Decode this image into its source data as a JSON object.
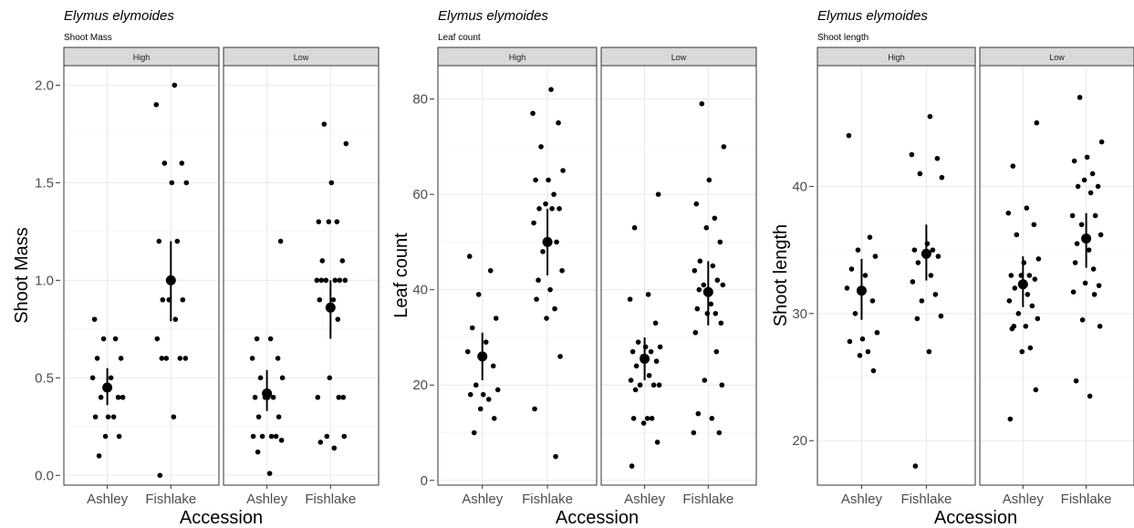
{
  "chart_data": [
    {
      "type": "scatter",
      "title": "Elymus elymoides",
      "subtitle": "Shoot Mass",
      "xlabel": "Accession",
      "ylabel": "Shoot Mass",
      "ylim": [
        -0.05,
        2.1
      ],
      "yticks": [
        0.0,
        0.5,
        1.0,
        1.5,
        2.0
      ],
      "ytick_labels": [
        "0.0",
        "0.5",
        "1.0",
        "1.5",
        "2.0"
      ],
      "categories": [
        "Ashley",
        "Fishlake"
      ],
      "grid": true,
      "facets": [
        {
          "label": "High",
          "groups": [
            {
              "x": "Ashley",
              "mean": 0.45,
              "ci": [
                0.36,
                0.55
              ],
              "points": [
                0.8,
                0.7,
                0.7,
                0.6,
                0.6,
                0.5,
                0.5,
                0.4,
                0.4,
                0.4,
                0.3,
                0.3,
                0.3,
                0.2,
                0.2,
                0.1
              ]
            },
            {
              "x": "Fishlake",
              "mean": 1.0,
              "ci": [
                0.79,
                1.2
              ],
              "points": [
                2.0,
                1.9,
                1.6,
                1.6,
                1.5,
                1.5,
                1.2,
                1.2,
                0.9,
                0.9,
                0.9,
                0.8,
                0.7,
                0.6,
                0.6,
                0.6,
                0.6,
                0.3,
                0.0
              ]
            }
          ]
        },
        {
          "label": "Low",
          "groups": [
            {
              "x": "Ashley",
              "mean": 0.42,
              "ci": [
                0.33,
                0.54
              ],
              "points": [
                1.2,
                0.7,
                0.7,
                0.6,
                0.6,
                0.5,
                0.5,
                0.4,
                0.4,
                0.4,
                0.4,
                0.3,
                0.3,
                0.2,
                0.2,
                0.2,
                0.2,
                0.18,
                0.12,
                0.01
              ]
            },
            {
              "x": "Fishlake",
              "mean": 0.86,
              "ci": [
                0.7,
                1.0
              ],
              "points": [
                1.8,
                1.7,
                1.5,
                1.3,
                1.3,
                1.3,
                1.1,
                1.1,
                1.0,
                1.0,
                1.0,
                1.0,
                1.0,
                1.0,
                0.9,
                0.9,
                0.8,
                0.5,
                0.4,
                0.4,
                0.4,
                0.2,
                0.2,
                0.17,
                0.14
              ]
            }
          ]
        }
      ]
    },
    {
      "type": "scatter",
      "title": "Elymus elymoides",
      "subtitle": "Leaf count",
      "xlabel": "Accession",
      "ylabel": "Leaf count",
      "ylim": [
        -1,
        87
      ],
      "yticks": [
        0,
        20,
        40,
        60,
        80
      ],
      "ytick_labels": [
        "0",
        "20",
        "40",
        "60",
        "80"
      ],
      "categories": [
        "Ashley",
        "Fishlake"
      ],
      "grid": true,
      "facets": [
        {
          "label": "High",
          "groups": [
            {
              "x": "Ashley",
              "mean": 26,
              "ci": [
                21,
                31
              ],
              "points": [
                47,
                44,
                39,
                34,
                32,
                29,
                27,
                24,
                20,
                19,
                18,
                18,
                17,
                15,
                13,
                10
              ]
            },
            {
              "x": "Fishlake",
              "mean": 50,
              "ci": [
                43,
                57
              ],
              "points": [
                82,
                77,
                75,
                70,
                65,
                63,
                63,
                60,
                58,
                57,
                57,
                57,
                54,
                50,
                48,
                44,
                42,
                40,
                38,
                36,
                34,
                26,
                15,
                5
              ]
            }
          ]
        },
        {
          "label": "Low",
          "groups": [
            {
              "x": "Ashley",
              "mean": 25.5,
              "ci": [
                21,
                30
              ],
              "points": [
                60,
                53,
                39,
                38,
                33,
                29,
                28,
                28,
                27,
                27,
                26,
                25,
                24,
                22,
                21,
                20,
                20,
                20,
                19,
                13,
                13,
                13,
                12,
                8,
                3
              ]
            },
            {
              "x": "Fishlake",
              "mean": 39.5,
              "ci": [
                32.5,
                46
              ],
              "points": [
                79,
                70,
                63,
                58,
                55,
                53,
                50,
                46,
                45,
                44,
                42,
                41,
                41,
                40,
                37,
                36,
                35,
                35,
                33,
                31,
                27,
                21,
                20,
                14,
                13,
                10,
                10
              ]
            }
          ]
        }
      ]
    },
    {
      "type": "scatter",
      "title": "Elymus elymoides",
      "subtitle": "Shoot length",
      "xlabel": "Accession",
      "ylabel": "Shoot length",
      "ylim": [
        16.5,
        49.5
      ],
      "yticks": [
        20,
        30,
        40
      ],
      "ytick_labels": [
        "20",
        "30",
        "40"
      ],
      "categories": [
        "Ashley",
        "Fishlake"
      ],
      "grid": true,
      "facets": [
        {
          "label": "High",
          "groups": [
            {
              "x": "Ashley",
              "mean": 31.8,
              "ci": [
                29.5,
                34.3
              ],
              "points": [
                44,
                36,
                35,
                34.5,
                33.5,
                33,
                32,
                31,
                30,
                28.5,
                28,
                27.8,
                27,
                26.7,
                25.5
              ]
            },
            {
              "x": "Fishlake",
              "mean": 34.7,
              "ci": [
                32.6,
                37
              ],
              "points": [
                45.5,
                42.5,
                42.2,
                41,
                40.7,
                35.5,
                35,
                35,
                34.8,
                34.5,
                34,
                33,
                32.5,
                31.5,
                31,
                29.8,
                29.6,
                27,
                18
              ]
            }
          ]
        },
        {
          "label": "Low",
          "groups": [
            {
              "x": "Ashley",
              "mean": 32.3,
              "ci": [
                30.5,
                34.5
              ],
              "points": [
                45,
                41.6,
                38.3,
                37.9,
                37,
                36.2,
                34.3,
                34,
                33,
                33,
                33,
                32.7,
                32,
                31.5,
                31,
                30.6,
                30,
                29.6,
                29,
                29,
                28.8,
                27.3,
                27,
                24,
                21.7
              ]
            },
            {
              "x": "Fishlake",
              "mean": 35.9,
              "ci": [
                33.6,
                37.9
              ],
              "points": [
                47,
                43.5,
                42.3,
                42,
                41,
                40.5,
                40,
                40,
                39.5,
                37.7,
                37.7,
                37,
                36.2,
                35.5,
                35,
                34,
                33.5,
                32.4,
                32.2,
                31.7,
                31.5,
                29.5,
                29,
                24.7,
                23.5
              ]
            }
          ]
        }
      ]
    }
  ]
}
